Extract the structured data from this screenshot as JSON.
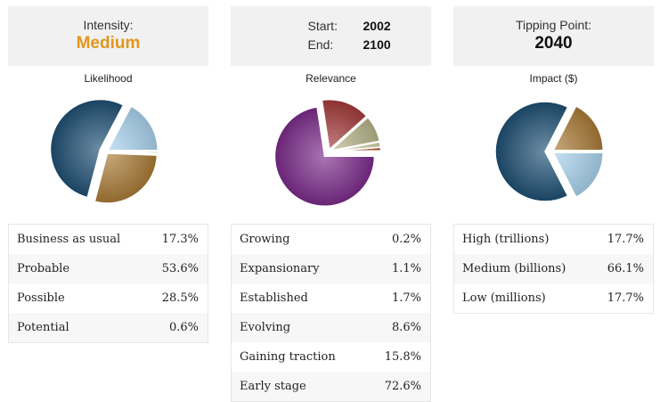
{
  "panels": [
    {
      "header": {
        "type": "labeled",
        "label": "Intensity:",
        "value": "Medium"
      },
      "pie_title": "Likelihood",
      "rows": [
        {
          "label": "Business as usual",
          "value": "17.3%"
        },
        {
          "label": "Probable",
          "value": "53.6%"
        },
        {
          "label": "Possible",
          "value": "28.5%"
        },
        {
          "label": "Potential",
          "value": "0.6%"
        }
      ]
    },
    {
      "header": {
        "type": "range",
        "start_label": "Start:",
        "start_value": "2002",
        "end_label": "End:",
        "end_value": "2100"
      },
      "pie_title": "Relevance",
      "rows": [
        {
          "label": "Growing",
          "value": "0.2%"
        },
        {
          "label": "Expansionary",
          "value": "1.1%"
        },
        {
          "label": "Established",
          "value": "1.7%"
        },
        {
          "label": "Evolving",
          "value": "8.6%"
        },
        {
          "label": "Gaining traction",
          "value": "15.8%"
        },
        {
          "label": "Early stage",
          "value": "72.6%"
        }
      ]
    },
    {
      "header": {
        "type": "labeled",
        "label": "Tipping Point:",
        "value": "2040"
      },
      "pie_title": "Impact ($)",
      "rows": [
        {
          "label": "High (trillions)",
          "value": "17.7%"
        },
        {
          "label": "Medium (billions)",
          "value": "66.1%"
        },
        {
          "label": "Low (millions)",
          "value": "17.7%"
        }
      ]
    }
  ],
  "chart_data": [
    {
      "type": "pie",
      "title": "Likelihood",
      "categories": [
        "Business as usual",
        "Probable",
        "Possible",
        "Potential"
      ],
      "values": [
        17.3,
        53.6,
        28.5,
        0.6
      ],
      "exploded": [
        "Probable"
      ],
      "colors": [
        "#a8d3ee",
        "#1d4f73",
        "#a97a35",
        "#d9e0b0"
      ]
    },
    {
      "type": "pie",
      "title": "Relevance",
      "categories": [
        "Growing",
        "Expansionary",
        "Established",
        "Evolving",
        "Gaining traction",
        "Early stage"
      ],
      "values": [
        0.2,
        1.1,
        1.7,
        8.6,
        15.8,
        72.6
      ],
      "exploded": [
        "Early stage"
      ],
      "colors": [
        "#1f5e7a",
        "#b85a33",
        "#d3d4a8",
        "#b8b48a",
        "#a33a3a",
        "#7a2a8a"
      ]
    },
    {
      "type": "pie",
      "title": "Impact ($)",
      "categories": [
        "High (trillions)",
        "Medium (billions)",
        "Low (millions)"
      ],
      "values": [
        17.7,
        66.1,
        17.7
      ],
      "exploded": [
        "Medium (billions)"
      ],
      "colors": [
        "#a97a35",
        "#1d4f73",
        "#a8d3ee"
      ]
    }
  ]
}
